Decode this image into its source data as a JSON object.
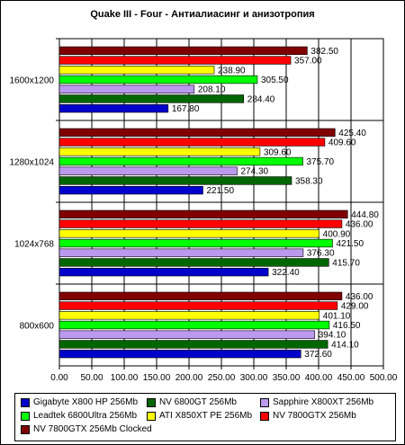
{
  "chart_data": {
    "type": "bar",
    "orientation": "horizontal",
    "title": "Quake III - Four - Антиалиасинг и анизотропия",
    "categories": [
      "1600x1200",
      "1280x1024",
      "1024x768",
      "800x600"
    ],
    "series": [
      {
        "name": "Gigabyte X800 HP 256Mb",
        "color": "#0000cc",
        "values": [
          167.8,
          221.5,
          322.4,
          372.6
        ],
        "labels": [
          "167.80",
          "221.50",
          "322.40",
          "372.60"
        ]
      },
      {
        "name": "NV 6800GT 256Mb",
        "color": "#006600",
        "values": [
          284.4,
          358.3,
          415.7,
          414.1
        ],
        "labels": [
          "284.40",
          "358.30",
          "415.70",
          "414.10"
        ]
      },
      {
        "name": "Sapphire X800XT 256Mb",
        "color": "#bb99ee",
        "values": [
          208.1,
          274.3,
          376.3,
          394.1
        ],
        "labels": [
          "208.10",
          "274.30",
          "376.30",
          "394.10"
        ]
      },
      {
        "name": "Leadtek 6800Ultra 256Mb",
        "color": "#00ff00",
        "values": [
          305.5,
          375.7,
          421.5,
          416.5
        ],
        "labels": [
          "305.50",
          "375.70",
          "421.50",
          "416.50"
        ]
      },
      {
        "name": "ATI X850XT PE 256Mb",
        "color": "#ffff00",
        "values": [
          238.9,
          309.6,
          400.9,
          401.1
        ],
        "labels": [
          "238.90",
          "309.60",
          "400.90",
          "401.10"
        ]
      },
      {
        "name": "NV 7800GTX 256Mb",
        "color": "#ff0000",
        "values": [
          357.0,
          409.6,
          436.0,
          429.0
        ],
        "labels": [
          "357.00",
          "409.60",
          "436.00",
          "429.00"
        ]
      },
      {
        "name": "NV 7800GTX 256Mb Clocked",
        "color": "#800000",
        "values": [
          382.5,
          425.4,
          444.8,
          436.0
        ],
        "labels": [
          "382.50",
          "425.40",
          "444.80",
          "436.00"
        ]
      }
    ],
    "xlim": [
      0,
      500
    ],
    "xticks": [
      "0.00",
      "50.00",
      "100.00",
      "150.00",
      "200.00",
      "250.00",
      "300.00",
      "350.00",
      "400.00",
      "450.00",
      "500.00"
    ],
    "grid": true,
    "legend_position": "bottom",
    "plot_background": "#ffffff",
    "bar_border": "#000000"
  }
}
